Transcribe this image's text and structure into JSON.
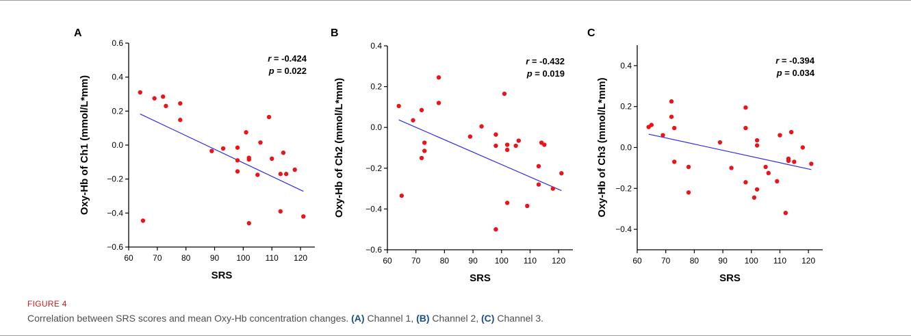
{
  "figure": {
    "label": "FIGURE 4",
    "caption_intro": "Correlation between SRS scores and mean Oxy-Hb concentration changes.",
    "caption_a_tag": "(A)",
    "caption_a_text": " Channel 1, ",
    "caption_b_tag": "(B)",
    "caption_b_text": " Channel 2, ",
    "caption_c_tag": "(C)",
    "caption_c_text": " Channel 3."
  },
  "colors": {
    "points": "#e8161c",
    "fit_line": "#2a2af0",
    "axes": "#000000"
  },
  "chart_data": [
    {
      "type": "scatter",
      "panel": "A",
      "xlabel": "SRS",
      "ylabel": "Oxy-Hb of Ch1 (mmol/L*mm)",
      "xlim": [
        60,
        125
      ],
      "ylim": [
        -0.6,
        0.6
      ],
      "xticks": [
        "60",
        "70",
        "80",
        "90",
        "100",
        "110",
        "120"
      ],
      "yticks": [
        "−0.6",
        "−0.4",
        "−0.2",
        "0.0",
        "0.2",
        "0.4",
        "0.6"
      ],
      "yticks_values": [
        -0.6,
        -0.4,
        -0.2,
        0.0,
        0.2,
        0.4,
        0.6
      ],
      "stats": {
        "r": "r = -0.424",
        "p": "p = 0.022"
      },
      "fit": [
        [
          64,
          0.183
        ],
        [
          121,
          -0.272
        ]
      ],
      "points": [
        [
          64,
          0.31
        ],
        [
          65,
          -0.445
        ],
        [
          69,
          0.275
        ],
        [
          72,
          0.285
        ],
        [
          73,
          0.23
        ],
        [
          78,
          0.245
        ],
        [
          78,
          0.148
        ],
        [
          89,
          -0.035
        ],
        [
          93,
          -0.02
        ],
        [
          98,
          -0.015
        ],
        [
          98,
          -0.09
        ],
        [
          98,
          -0.155
        ],
        [
          101,
          0.075
        ],
        [
          102,
          -0.085
        ],
        [
          102,
          -0.075
        ],
        [
          102,
          -0.46
        ],
        [
          105,
          -0.175
        ],
        [
          106,
          0.015
        ],
        [
          109,
          0.165
        ],
        [
          110,
          -0.08
        ],
        [
          113,
          -0.17
        ],
        [
          113,
          -0.39
        ],
        [
          114,
          -0.045
        ],
        [
          115,
          -0.17
        ],
        [
          118,
          -0.145
        ],
        [
          121,
          -0.42
        ]
      ]
    },
    {
      "type": "scatter",
      "panel": "B",
      "xlabel": "SRS",
      "ylabel": "Oxy-Hb of Ch2 (mmol/L*mm)",
      "xlim": [
        60,
        125
      ],
      "ylim": [
        -0.6,
        0.4
      ],
      "xticks": [
        "60",
        "70",
        "80",
        "90",
        "100",
        "110",
        "120"
      ],
      "yticks": [
        "−0.6",
        "−0.4",
        "−0.2",
        "0.0",
        "0.2",
        "0.4"
      ],
      "yticks_values": [
        -0.6,
        -0.4,
        -0.2,
        0.0,
        0.2,
        0.4
      ],
      "stats": {
        "r": "r = -0.432",
        "p": "p = 0.019"
      },
      "fit": [
        [
          64,
          0.037
        ],
        [
          121,
          -0.31
        ]
      ],
      "points": [
        [
          64,
          0.105
        ],
        [
          65,
          -0.335
        ],
        [
          69,
          0.035
        ],
        [
          72,
          0.085
        ],
        [
          72,
          -0.15
        ],
        [
          73,
          -0.075
        ],
        [
          73,
          -0.115
        ],
        [
          78,
          0.245
        ],
        [
          78,
          0.12
        ],
        [
          89,
          -0.045
        ],
        [
          93,
          0.005
        ],
        [
          98,
          -0.035
        ],
        [
          98,
          -0.09
        ],
        [
          98,
          -0.5
        ],
        [
          101,
          0.165
        ],
        [
          102,
          -0.085
        ],
        [
          102,
          -0.11
        ],
        [
          102,
          -0.37
        ],
        [
          105,
          -0.09
        ],
        [
          106,
          -0.065
        ],
        [
          109,
          -0.385
        ],
        [
          113,
          -0.19
        ],
        [
          113,
          -0.28
        ],
        [
          114,
          -0.075
        ],
        [
          115,
          -0.085
        ],
        [
          118,
          -0.3
        ],
        [
          121,
          -0.225
        ]
      ]
    },
    {
      "type": "scatter",
      "panel": "C",
      "xlabel": "SRS",
      "ylabel": "Oxy-Hb of Ch3 (mmol/L*mm)",
      "xlim": [
        60,
        125
      ],
      "ylim": [
        -0.5,
        0.5
      ],
      "xticks": [
        "60",
        "70",
        "80",
        "90",
        "100",
        "110",
        "120"
      ],
      "yticks": [
        "−0.4",
        "−0.2",
        "0.0",
        "0.2",
        "0.4"
      ],
      "yticks_values": [
        -0.4,
        -0.2,
        0.0,
        0.2,
        0.4
      ],
      "stats": {
        "r": "r = -0.394",
        "p": "p = 0.034"
      },
      "fit": [
        [
          64,
          0.065
        ],
        [
          121,
          -0.108
        ]
      ],
      "points": [
        [
          64,
          0.1
        ],
        [
          65,
          0.11
        ],
        [
          69,
          0.06
        ],
        [
          72,
          0.225
        ],
        [
          72,
          0.15
        ],
        [
          73,
          0.095
        ],
        [
          73,
          -0.07
        ],
        [
          78,
          -0.095
        ],
        [
          78,
          -0.22
        ],
        [
          89,
          0.025
        ],
        [
          93,
          -0.1
        ],
        [
          98,
          0.195
        ],
        [
          98,
          0.095
        ],
        [
          98,
          -0.17
        ],
        [
          101,
          -0.245
        ],
        [
          102,
          0.035
        ],
        [
          102,
          0.01
        ],
        [
          102,
          -0.205
        ],
        [
          105,
          -0.095
        ],
        [
          106,
          -0.125
        ],
        [
          109,
          -0.165
        ],
        [
          110,
          0.06
        ],
        [
          112,
          -0.32
        ],
        [
          113,
          -0.065
        ],
        [
          113,
          -0.055
        ],
        [
          114,
          0.075
        ],
        [
          115,
          -0.07
        ],
        [
          118,
          0.0
        ],
        [
          121,
          -0.08
        ]
      ]
    }
  ]
}
